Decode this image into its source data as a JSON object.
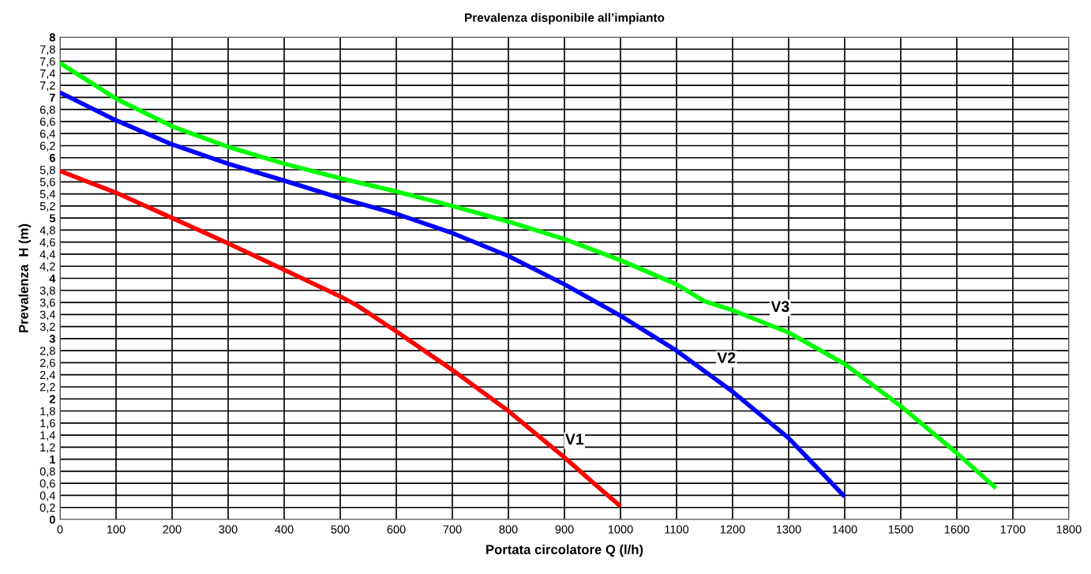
{
  "chart_data": {
    "type": "line",
    "title": "Prevalenza disponibile all’impianto",
    "xlabel": "Portata circolatore Q (l/h)",
    "ylabel": "Prevalenza  H (m)",
    "xlim": [
      0,
      1800
    ],
    "xticks": [
      0,
      100,
      200,
      300,
      400,
      500,
      600,
      700,
      800,
      900,
      1000,
      1100,
      1200,
      1300,
      1400,
      1500,
      1600,
      1700,
      1800
    ],
    "ylim": [
      0,
      8
    ],
    "yticks": [
      0,
      {
        "value": 0.2,
        "label": "0,2"
      },
      {
        "value": 0.4,
        "label": "0,4"
      },
      {
        "value": 0.6,
        "label": "0,6"
      },
      {
        "value": 0.8,
        "label": "0,8"
      },
      1,
      {
        "value": 1.2,
        "label": "1,2"
      },
      {
        "value": 1.4,
        "label": "1,4"
      },
      {
        "value": 1.6,
        "label": "1,6"
      },
      {
        "value": 1.8,
        "label": "1,8"
      },
      2,
      {
        "value": 2.2,
        "label": "2,2"
      },
      {
        "value": 2.4,
        "label": "2,4"
      },
      {
        "value": 2.6,
        "label": "2,6"
      },
      {
        "value": 2.8,
        "label": "2,8"
      },
      3,
      {
        "value": 3.2,
        "label": "3,2"
      },
      {
        "value": 3.4,
        "label": "3,4"
      },
      {
        "value": 3.6,
        "label": "3,6"
      },
      {
        "value": 3.8,
        "label": "3,8"
      },
      4,
      {
        "value": 4.2,
        "label": "4,2"
      },
      {
        "value": 4.4,
        "label": "4,4"
      },
      {
        "value": 4.6,
        "label": "4,6"
      },
      {
        "value": 4.8,
        "label": "4,8"
      },
      5,
      {
        "value": 5.2,
        "label": "5,2"
      },
      {
        "value": 5.4,
        "label": "5,4"
      },
      {
        "value": 5.6,
        "label": "5,6"
      },
      {
        "value": 5.8,
        "label": "5,8"
      },
      6,
      {
        "value": 6.2,
        "label": "6,2"
      },
      {
        "value": 6.4,
        "label": "6,4"
      },
      {
        "value": 6.6,
        "label": "6,6"
      },
      {
        "value": 6.8,
        "label": "6,8"
      },
      7,
      {
        "value": 7.2,
        "label": "7,2"
      },
      {
        "value": 7.4,
        "label": "7,4"
      },
      {
        "value": 7.6,
        "label": "7,6"
      },
      {
        "value": 7.8,
        "label": "7,8"
      },
      8
    ],
    "grid": true,
    "marker": "none",
    "line_style": "solid",
    "series": [
      {
        "color": "#ff0000",
        "x": [
          0,
          100,
          200,
          300,
          400,
          500,
          530,
          600,
          700,
          800,
          900,
          950,
          1000
        ],
        "values": [
          5.78,
          5.42,
          5.0,
          4.58,
          4.14,
          3.7,
          3.55,
          3.12,
          2.48,
          1.8,
          1.03,
          0.62,
          0.22
        ]
      },
      {
        "color": "#0000ff",
        "x": [
          0,
          100,
          200,
          300,
          400,
          500,
          600,
          700,
          800,
          900,
          1000,
          1100,
          1200,
          1300,
          1400
        ],
        "values": [
          7.08,
          6.62,
          6.22,
          5.9,
          5.62,
          5.33,
          5.07,
          4.75,
          4.37,
          3.9,
          3.38,
          2.8,
          2.12,
          1.35,
          0.38
        ]
      },
      {
        "color": "#00ff00",
        "x": [
          0,
          100,
          200,
          300,
          400,
          500,
          600,
          700,
          800,
          900,
          1000,
          1100,
          1150,
          1200,
          1300,
          1400,
          1500,
          1600,
          1670
        ],
        "values": [
          7.57,
          6.98,
          6.52,
          6.18,
          5.9,
          5.66,
          5.44,
          5.2,
          4.94,
          4.65,
          4.3,
          3.9,
          3.62,
          3.47,
          3.1,
          2.58,
          1.88,
          1.1,
          0.52
        ]
      }
    ],
    "annotations": [
      {
        "text": "V1",
        "x": 918,
        "y": 1.31
      },
      {
        "text": "V2",
        "x": 1189,
        "y": 2.66
      },
      {
        "text": "V3",
        "x": 1285,
        "y": 3.51
      }
    ]
  }
}
